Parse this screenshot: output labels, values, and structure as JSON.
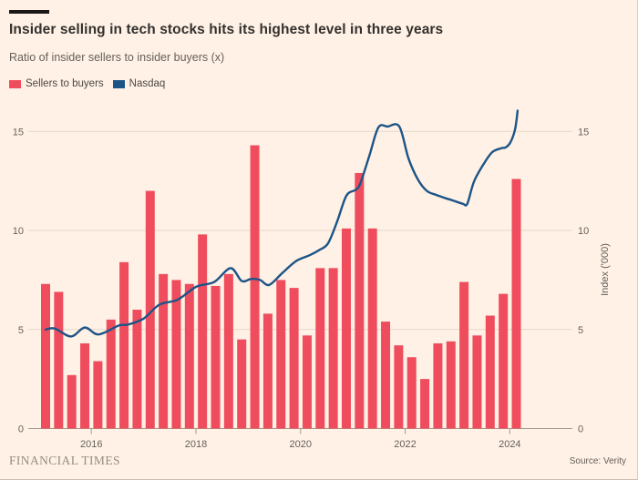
{
  "header": {
    "title": "Insider selling in tech stocks hits its highest level in three years",
    "subtitle": "Ratio of insider sellers to insider buyers (x)"
  },
  "legend": [
    {
      "label": "Sellers to buyers",
      "color": "#ef4d5d"
    },
    {
      "label": "Nasdaq",
      "color": "#1d5487"
    }
  ],
  "footer": {
    "brand": "FINANCIAL TIMES",
    "source": "Source: Verity"
  },
  "colors": {
    "background": "#FFF1E5",
    "bar": "#ef4d5d",
    "line": "#1d5487",
    "grid": "#e4d9ca",
    "axis": "#a49a8d",
    "axis_text": "#66605b"
  },
  "chart_data": {
    "type": "bar+line",
    "title": "Insider selling in tech stocks hits its highest level in three years",
    "subtitle": "Ratio of insider sellers to insider buyers (x)",
    "categories": [
      "2015 Q1",
      "2015 Q2",
      "2015 Q3",
      "2015 Q4",
      "2016 Q1",
      "2016 Q2",
      "2016 Q3",
      "2016 Q4",
      "2017 Q1",
      "2017 Q2",
      "2017 Q3",
      "2017 Q4",
      "2018 Q1",
      "2018 Q2",
      "2018 Q3",
      "2018 Q4",
      "2019 Q1",
      "2019 Q2",
      "2019 Q3",
      "2019 Q4",
      "2020 Q1",
      "2020 Q2",
      "2020 Q3",
      "2020 Q4",
      "2021 Q1",
      "2021 Q2",
      "2021 Q3",
      "2021 Q4",
      "2022 Q1",
      "2022 Q2",
      "2022 Q3",
      "2022 Q4",
      "2023 Q1",
      "2023 Q2",
      "2023 Q3",
      "2023 Q4",
      "2024 Q1"
    ],
    "series": [
      {
        "name": "Sellers to buyers",
        "type": "bar",
        "unit": "ratio (x)",
        "values": [
          7.3,
          6.9,
          2.7,
          4.3,
          3.4,
          5.5,
          8.4,
          6.0,
          12.0,
          7.8,
          7.5,
          7.3,
          9.8,
          7.2,
          7.8,
          4.5,
          14.3,
          5.8,
          7.5,
          7.1,
          4.7,
          8.1,
          8.1,
          10.1,
          12.9,
          10.1,
          5.4,
          4.2,
          3.6,
          2.5,
          4.3,
          4.4,
          7.4,
          4.7,
          5.7,
          6.8,
          12.6
        ]
      },
      {
        "name": "Nasdaq",
        "type": "line",
        "unit": "Index ('000)",
        "points": [
          [
            0,
            5.0
          ],
          [
            0.7,
            5.05
          ],
          [
            1.95,
            4.65
          ],
          [
            3,
            5.1
          ],
          [
            4.05,
            4.75
          ],
          [
            5.6,
            5.2
          ],
          [
            6.3,
            5.25
          ],
          [
            7.5,
            5.55
          ],
          [
            8.7,
            6.25
          ],
          [
            10.1,
            6.5
          ],
          [
            11.5,
            7.15
          ],
          [
            12.9,
            7.4
          ],
          [
            14.15,
            8.1
          ],
          [
            15,
            7.45
          ],
          [
            15.7,
            7.55
          ],
          [
            16.4,
            7.5
          ],
          [
            17.1,
            7.25
          ],
          [
            18.1,
            7.85
          ],
          [
            19.15,
            8.45
          ],
          [
            20.2,
            8.75
          ],
          [
            20.9,
            9.0
          ],
          [
            21.6,
            9.35
          ],
          [
            22.3,
            10.45
          ],
          [
            23,
            11.75
          ],
          [
            23.7,
            12.05
          ],
          [
            24.05,
            12.35
          ],
          [
            24.75,
            13.75
          ],
          [
            25.45,
            15.2
          ],
          [
            26.15,
            15.25
          ],
          [
            27.05,
            15.25
          ],
          [
            27.75,
            13.65
          ],
          [
            28.45,
            12.6
          ],
          [
            29.15,
            12.0
          ],
          [
            29.85,
            11.8
          ],
          [
            30.5,
            11.65
          ],
          [
            31.2,
            11.5
          ],
          [
            31.9,
            11.35
          ],
          [
            32.25,
            11.35
          ],
          [
            32.75,
            12.45
          ],
          [
            33.45,
            13.3
          ],
          [
            34.15,
            13.95
          ],
          [
            34.85,
            14.15
          ],
          [
            35.2,
            14.2
          ],
          [
            35.55,
            14.45
          ],
          [
            35.9,
            15.1
          ],
          [
            36.1,
            16.05
          ]
        ]
      }
    ],
    "y_axis": {
      "ticks": [
        0,
        5,
        10,
        15
      ],
      "ylim": [
        0,
        16.5
      ],
      "left_labels": [
        "0",
        "5",
        "10",
        "15"
      ],
      "right_labels": [
        "0",
        "5",
        "10",
        "15"
      ],
      "right_title": "Index ('000)"
    },
    "x_axis": {
      "tick_labels": [
        "2016",
        "2018",
        "2020",
        "2022",
        "2024"
      ],
      "tick_positions": [
        3.5,
        11.5,
        19.5,
        27.5,
        35.5
      ]
    },
    "grid": "horizontal",
    "legend_position": "top-left"
  }
}
